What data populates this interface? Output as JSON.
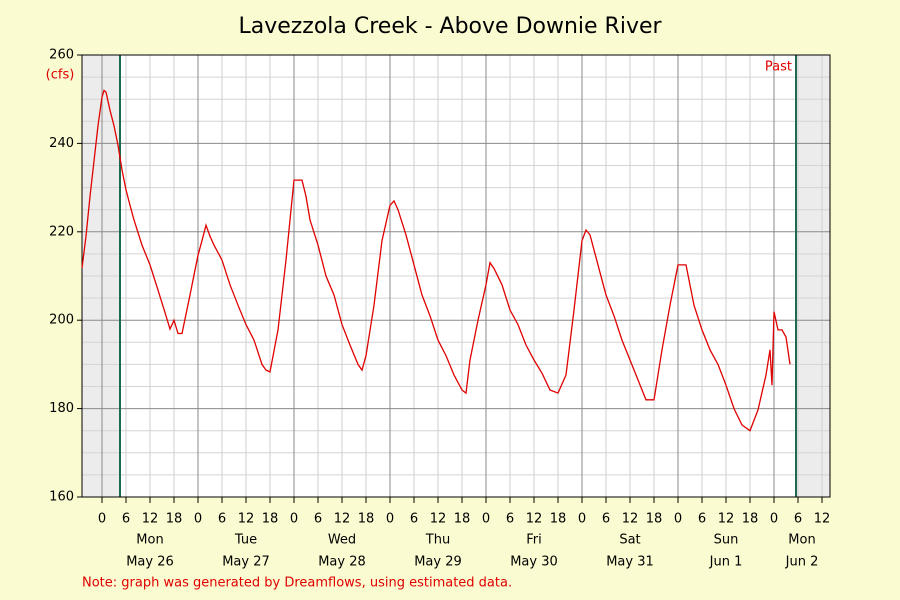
{
  "chart_data": {
    "type": "line",
    "title": "Lavezzola Creek - Above Downie River",
    "y_unit": "(cfs)",
    "note": "Note: graph was generated by Dreamflows, using estimated data.",
    "past_label": "Past",
    "color": "#e00000",
    "grid": true,
    "xlim": [
      -5,
      182
    ],
    "ylim": [
      160,
      260
    ],
    "yticks": [
      160,
      180,
      200,
      220,
      240,
      260
    ],
    "yminor": [
      165,
      170,
      175,
      185,
      190,
      195,
      205,
      210,
      215,
      225,
      230,
      235,
      245,
      250,
      255
    ],
    "xticks": [
      0,
      6,
      12,
      18,
      {
        "value": 24,
        "label": "0"
      },
      {
        "value": 30,
        "label": "6"
      },
      {
        "value": 36,
        "label": "12"
      },
      {
        "value": 42,
        "label": "18"
      },
      {
        "value": 48,
        "label": "0"
      },
      {
        "value": 54,
        "label": "6"
      },
      {
        "value": 60,
        "label": "12"
      },
      {
        "value": 66,
        "label": "18"
      },
      {
        "value": 72,
        "label": "0"
      },
      {
        "value": 78,
        "label": "6"
      },
      {
        "value": 84,
        "label": "12"
      },
      {
        "value": 90,
        "label": "18"
      },
      {
        "value": 96,
        "label": "0"
      },
      {
        "value": 102,
        "label": "6"
      },
      {
        "value": 108,
        "label": "12"
      },
      {
        "value": 114,
        "label": "18"
      },
      {
        "value": 120,
        "label": "0"
      },
      {
        "value": 126,
        "label": "6"
      },
      {
        "value": 132,
        "label": "12"
      },
      {
        "value": 138,
        "label": "18"
      },
      {
        "value": 144,
        "label": "0"
      },
      {
        "value": 150,
        "label": "6"
      },
      {
        "value": 156,
        "label": "12"
      },
      {
        "value": 162,
        "label": "18"
      },
      {
        "value": 168,
        "label": "0"
      },
      {
        "value": 174,
        "label": "6"
      },
      {
        "value": 180,
        "label": "12"
      }
    ],
    "day_labels": [
      {
        "value": 12,
        "day": "Mon",
        "date": "May 26"
      },
      {
        "value": 36,
        "day": "Tue",
        "date": "May 27"
      },
      {
        "value": 60,
        "day": "Wed",
        "date": "May 28"
      },
      {
        "value": 84,
        "day": "Thu",
        "date": "May 29"
      },
      {
        "value": 108,
        "day": "Fri",
        "date": "May 30"
      },
      {
        "value": 132,
        "day": "Sat",
        "date": "May 31"
      },
      {
        "value": 156,
        "day": "Sun",
        "date": "Jun 1"
      },
      {
        "value": 175,
        "day": "Mon",
        "date": "Jun 2"
      }
    ],
    "now_lines": [
      4.5,
      173.5
    ],
    "x": [
      -5,
      -4,
      -3,
      -2,
      -1,
      0,
      0.5,
      1,
      2,
      3,
      4,
      5,
      6,
      7,
      8,
      10,
      12,
      14,
      16,
      17,
      18,
      19,
      20,
      22,
      24,
      25,
      26,
      27,
      28,
      30,
      32,
      34,
      36,
      38,
      40,
      41,
      42,
      44,
      46,
      47,
      48,
      49,
      50,
      51,
      52,
      54,
      56,
      58,
      60,
      62,
      64,
      65,
      66,
      68,
      70,
      72,
      73,
      74,
      76,
      78,
      80,
      82,
      84,
      86,
      88,
      90,
      91,
      92,
      94,
      96,
      97,
      98,
      100,
      102,
      104,
      106,
      108,
      110,
      112,
      114,
      116,
      118,
      120,
      121,
      122,
      124,
      126,
      128,
      130,
      132,
      134,
      136,
      138,
      140,
      142,
      144,
      146,
      148,
      150,
      152,
      154,
      156,
      158,
      160,
      162,
      164,
      166,
      167,
      167.5,
      168,
      169,
      170,
      171,
      172
    ],
    "values": [
      211.8,
      219,
      228,
      236,
      244,
      250.5,
      252,
      251.6,
      247.5,
      244,
      239.6,
      234,
      229.5,
      226,
      222.7,
      217,
      212.5,
      206.8,
      201,
      198,
      200,
      197,
      197,
      205.7,
      214.7,
      218,
      221.5,
      219,
      217,
      213.6,
      208,
      203.4,
      199,
      195.5,
      190,
      188.7,
      188.3,
      197.8,
      213.6,
      222.7,
      231.7,
      231.7,
      231.7,
      228,
      222.7,
      217,
      210,
      205.7,
      199,
      194.4,
      190,
      188.7,
      192,
      203.4,
      218,
      226,
      227,
      225,
      219.3,
      212.5,
      205.7,
      201,
      195.5,
      192,
      187.6,
      184.2,
      183.5,
      191,
      200,
      208,
      213,
      211.7,
      208,
      202.3,
      199,
      194.4,
      191,
      188,
      184.2,
      183.5,
      187.6,
      202.3,
      218,
      220.4,
      219.3,
      212.5,
      205.7,
      201,
      195.5,
      191,
      186.5,
      182,
      182,
      193.3,
      203.4,
      212.5,
      212.5,
      203.4,
      197.8,
      193.3,
      190,
      185.3,
      180,
      176.3,
      175,
      179.7,
      187.6,
      193.3,
      185.3,
      201.9,
      197.8,
      197.8,
      196.2,
      190
    ]
  }
}
